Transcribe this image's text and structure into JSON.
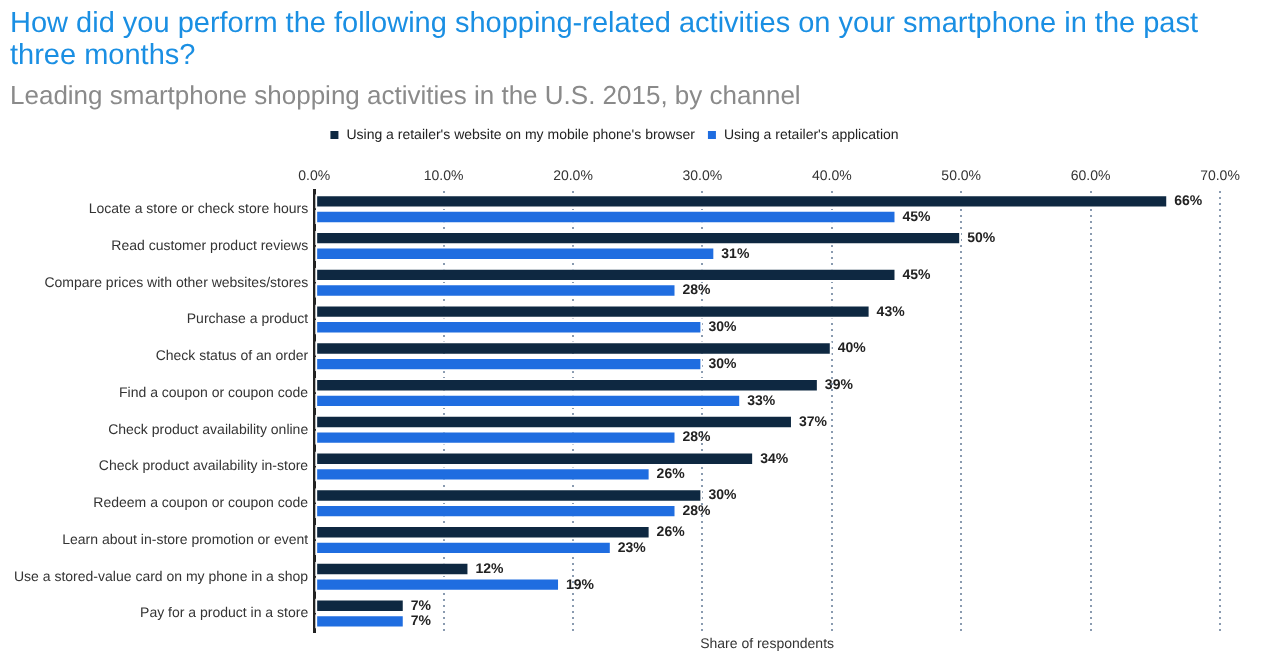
{
  "chart_data": {
    "type": "bar",
    "orientation": "horizontal",
    "title": "How did you perform the following shopping-related activities on your smartphone in the past three months?",
    "subtitle": "Leading smartphone shopping activities in the U.S. 2015, by channel",
    "xlabel": "Share of respondents",
    "categories": [
      "Locate a store or check store hours",
      "Read customer product reviews",
      "Compare prices with other websites/stores",
      "Purchase a product",
      "Check status of an order",
      "Find a coupon or coupon code",
      "Check product availability online",
      "Check product availability in-store",
      "Redeem a coupon or coupon code",
      "Learn about in-store promotion or event",
      "Use a stored-value card on my phone in a shop",
      "Pay for a product in a store"
    ],
    "series": [
      {
        "name": "Using a retailer's website on my mobile phone's browser",
        "color": "#0e2841",
        "values": [
          66,
          50,
          45,
          43,
          40,
          39,
          37,
          34,
          30,
          26,
          12,
          7
        ],
        "value_labels": [
          "66%",
          "50%",
          "45%",
          "43%",
          "40%",
          "39%",
          "37%",
          "34%",
          "30%",
          "26%",
          "12%",
          "7%"
        ]
      },
      {
        "name": "Using a retailer's application",
        "color": "#1f6de0",
        "values": [
          45,
          31,
          28,
          30,
          30,
          33,
          28,
          26,
          28,
          23,
          19,
          7
        ],
        "value_labels": [
          "45%",
          "31%",
          "28%",
          "30%",
          "30%",
          "33%",
          "28%",
          "26%",
          "28%",
          "23%",
          "19%",
          "7%"
        ]
      }
    ],
    "xlim": [
      0,
      70
    ],
    "xticks": [
      {
        "value": 0,
        "label": "0.0%"
      },
      {
        "value": 10,
        "label": "10.0%"
      },
      {
        "value": 20,
        "label": "20.0%"
      },
      {
        "value": 30,
        "label": "30.0%"
      },
      {
        "value": 40,
        "label": "40.0%"
      },
      {
        "value": 50,
        "label": "50.0%"
      },
      {
        "value": 60,
        "label": "60.0%"
      },
      {
        "value": 70,
        "label": "70.0%"
      }
    ],
    "grid": "x",
    "legend": "top"
  }
}
